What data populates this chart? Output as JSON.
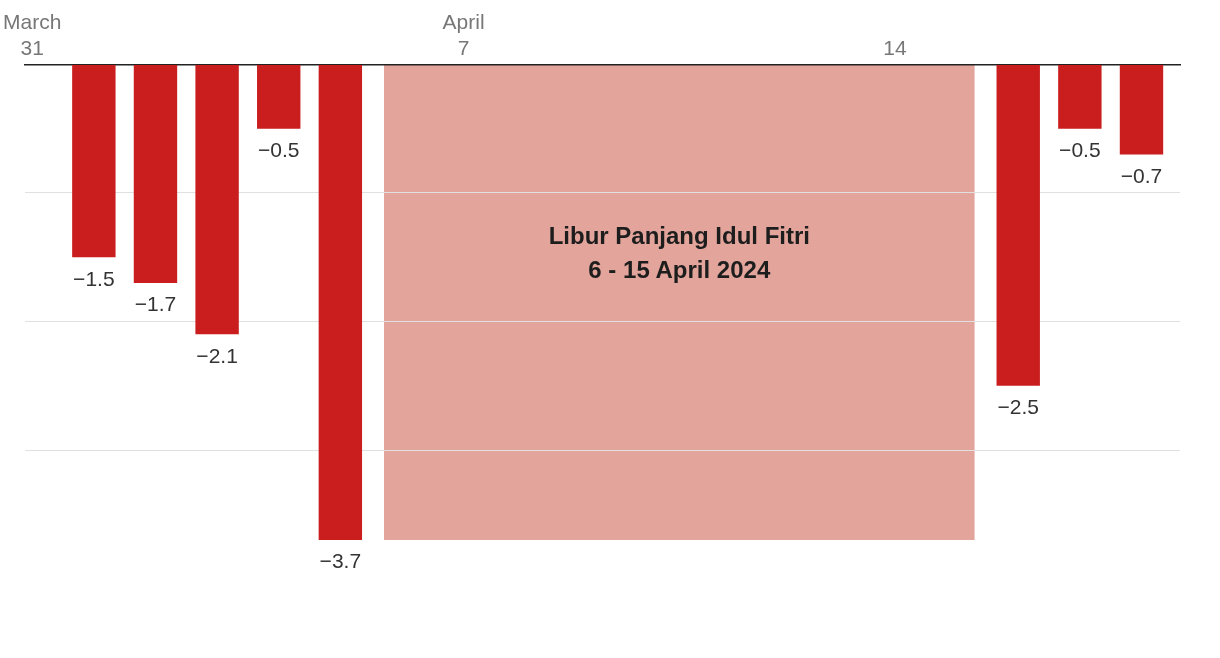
{
  "chart_data": {
    "type": "bar",
    "x": [
      "2024-04-01",
      "2024-04-02",
      "2024-04-03",
      "2024-04-04",
      "2024-04-05",
      "2024-04-16",
      "2024-04-17",
      "2024-04-18"
    ],
    "values": [
      -1.5,
      -1.7,
      -2.1,
      -0.5,
      -3.7,
      -2.5,
      -0.5,
      -0.7
    ],
    "color": "#c91d1e",
    "data_labels": true,
    "xlim": [
      "2024-03-30T21:00",
      "2024-04-18T15:00"
    ],
    "xticks": [
      {
        "value": "2024-03-31",
        "label": "March\n31"
      },
      {
        "value": "2024-04-07",
        "label": "April\n7"
      },
      {
        "value": "2024-04-14",
        "label": "14"
      }
    ],
    "ylim": [
      -3.7,
      0
    ],
    "yticks": [
      0,
      {
        "value": -1,
        "label": null
      },
      {
        "value": -2,
        "label": null
      },
      {
        "value": -3,
        "label": null
      }
    ],
    "tick_labels": "x",
    "grid": "y",
    "legend": false,
    "bands": [
      {
        "axis": "x",
        "from": "2024-04-05T17:00",
        "to": "2024-04-15T07:00",
        "label": "Libur Panjang Idul Fitri\n6 - 15 April 2024",
        "color": "#e3a49b"
      }
    ]
  }
}
